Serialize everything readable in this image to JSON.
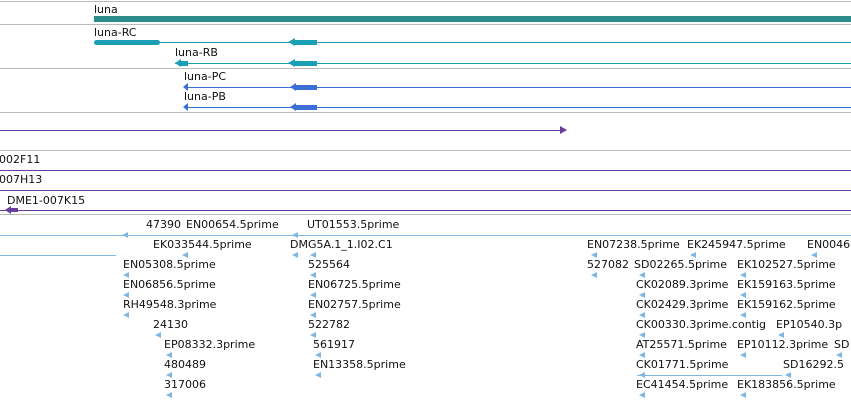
{
  "genes": {
    "gene_name": "luna",
    "transcripts": [
      "luna-RC",
      "luna-RB",
      "luna-PC",
      "luna-PB"
    ]
  },
  "clones": [
    "002F11",
    "007H13",
    "DME1-007K15"
  ],
  "ests": {
    "labels": [
      "47390",
      "EN00654.5prime",
      "UT01553.5prime",
      "EK033544.5prime",
      "DMG5A.1_1.I02.C1",
      "EN07238.5prime",
      "EK245947.5prime",
      "EN0046",
      "EN05308.5prime",
      "525564",
      "527082",
      "SD02265.5prime",
      "EK102527.5prime",
      "EN06856.5prime",
      "EN06725.5prime",
      "CK02089.3prime",
      "EK159163.5prime",
      "RH49548.3prime",
      "EN02757.5prime",
      "CK02429.3prime",
      "EK159162.5prime",
      "24130",
      "522782",
      "CK00330.3prime.contig",
      "EP10540.3p",
      "EP08332.3prime",
      "561917",
      "AT25571.5prime",
      "EP10112.3prime",
      "SD",
      "480489",
      "EN13358.5prime",
      "CK01771.5prime",
      "SD16292.5",
      "317006",
      "EC41454.5prime",
      "EK183856.5prime"
    ]
  },
  "colors": {
    "gene": "#2e8b8b",
    "transcript_rc": "#1a9fb5",
    "protein": "#3a6fd8",
    "clone": "#6a3d9a",
    "est": "#7fb6e2",
    "separator": "#b9b9b9"
  }
}
